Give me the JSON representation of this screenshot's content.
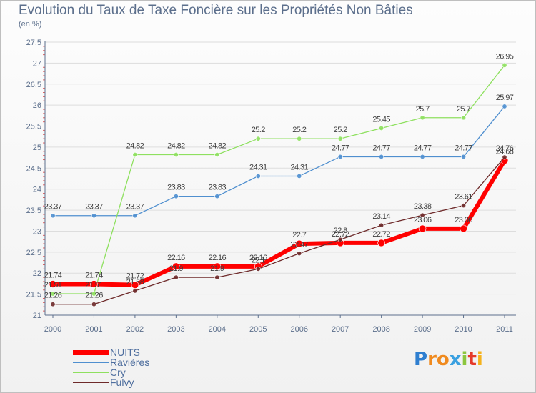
{
  "title": "Evolution du Taux de Taxe Foncière sur les Propriétés Non Bâties",
  "subtitle": "(en %)",
  "logo_text": "Proxiti",
  "colors": {
    "NUITS": "#ff0000",
    "Ravières": "#4f8fcf",
    "Cry": "#8ee05f",
    "Fulvy": "#6e2a2a",
    "axis": "#5c6f8c",
    "grid": "#dddddd"
  },
  "chart_data": {
    "type": "line",
    "title": "Evolution du Taux de Taxe Foncière sur les Propriétés Non Bâties",
    "ylabel": "(en %)",
    "categories": [
      "2000",
      "2001",
      "2002",
      "2003",
      "2004",
      "2005",
      "2006",
      "2007",
      "2008",
      "2009",
      "2010",
      "2011"
    ],
    "ylim": [
      21,
      27.5
    ],
    "yticks": [
      "21",
      "21.5",
      "22",
      "22.5",
      "23",
      "23.5",
      "24",
      "24.5",
      "25",
      "25.5",
      "26",
      "26.5",
      "27",
      "27.5"
    ],
    "grid": "horizontal",
    "legend_position": "bottom-left",
    "series": [
      {
        "name": "NUITS",
        "values": [
          21.74,
          21.74,
          21.72,
          22.16,
          22.16,
          22.16,
          22.7,
          22.72,
          22.72,
          23.06,
          23.06,
          24.68
        ],
        "labels": [
          "21.74",
          "21.74",
          "21.72",
          "22.16",
          "22.16",
          "22.16",
          "22.7",
          "22.72",
          "22.72",
          "23.06",
          "23.06",
          "24.68"
        ]
      },
      {
        "name": "Ravières",
        "values": [
          23.37,
          23.37,
          23.37,
          23.83,
          23.83,
          24.31,
          24.31,
          24.77,
          24.77,
          24.77,
          24.77,
          25.97
        ],
        "labels": [
          "23.37",
          "23.37",
          "23.37",
          "23.83",
          "23.83",
          "24.31",
          "24.31",
          "24.77",
          "24.77",
          "24.77",
          "24.77",
          "25.97"
        ]
      },
      {
        "name": "Cry",
        "values": [
          21.51,
          21.51,
          24.82,
          24.82,
          24.82,
          25.2,
          25.2,
          25.2,
          25.45,
          25.7,
          25.7,
          26.95
        ],
        "labels": [
          "21.51",
          "21.51",
          "24.82",
          "24.82",
          "24.82",
          "25.2",
          "25.2",
          "25.2",
          "25.45",
          "25.7",
          "25.7",
          "26.95"
        ]
      },
      {
        "name": "Fulvy",
        "values": [
          21.26,
          21.26,
          21.58,
          21.9,
          21.9,
          22.1,
          22.47,
          22.8,
          23.14,
          23.38,
          23.61,
          24.76
        ],
        "labels": [
          "21.26",
          "21.26",
          "21.58",
          "21.9",
          "21.9",
          "22.1",
          "22.47",
          "22.8",
          "23.14",
          "23.38",
          "23.61",
          "24.76"
        ]
      }
    ]
  }
}
